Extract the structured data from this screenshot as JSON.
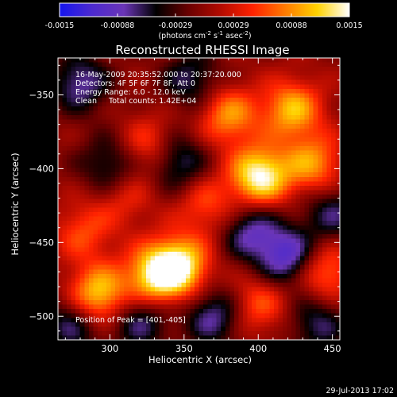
{
  "chart_data": {
    "type": "heatmap",
    "title": "Reconstructed RHESSI Image",
    "xlabel": "Heliocentric X (arcsec)",
    "ylabel": "Heliocentric Y (arcsec)",
    "xlim": [
      265,
      455
    ],
    "ylim": [
      -516,
      -325
    ],
    "xticks": [
      300,
      350,
      400,
      450
    ],
    "yticks": [
      -350,
      -400,
      -450,
      -500
    ],
    "colorbar": {
      "min": -0.0015,
      "max": 0.0015,
      "ticks": [
        "-0.0015",
        "-0.00088",
        "-0.00029",
        "0.00029",
        "0.00088",
        "0.0015"
      ],
      "label_parts": [
        "(photons cm",
        "-2",
        " s",
        "-1",
        " asec",
        "-2",
        ")"
      ]
    },
    "colormap": [
      "#1515ee",
      "#4c2ad0",
      "#6a35b7",
      "#000000",
      "#6a0000",
      "#b30b00",
      "#ff2200",
      "#ff7a00",
      "#ffd200",
      "#ffffff"
    ],
    "annotations": [
      "16-May-2009 20:35:52.000 to 20:37:20.000",
      "Detectors: 4F 5F 6F 7F 8F, Att 0",
      "Energy Range: 6.0 - 12.0 keV",
      "Clean     Total counts: 1.42E+04"
    ],
    "peak_label": "Position of Peak = [401,-405]",
    "sources": [
      {
        "x": 401,
        "y": -405,
        "v": 1.0
      },
      {
        "x": 347,
        "y": -466,
        "v": 0.92
      },
      {
        "x": 330,
        "y": -473,
        "v": 0.8
      },
      {
        "x": 292,
        "y": -486,
        "v": 0.85
      },
      {
        "x": 423,
        "y": -360,
        "v": 0.72
      },
      {
        "x": 437,
        "y": -397,
        "v": 0.62
      },
      {
        "x": 380,
        "y": -364,
        "v": 0.62
      },
      {
        "x": 445,
        "y": -470,
        "v": 0.55
      },
      {
        "x": 400,
        "y": -492,
        "v": 0.45
      },
      {
        "x": 327,
        "y": -385,
        "v": 0.45
      },
      {
        "x": 282,
        "y": -443,
        "v": 0.4
      },
      {
        "x": 365,
        "y": -425,
        "v": 0.4
      },
      {
        "x": 310,
        "y": -420,
        "v": 0.3
      },
      {
        "x": 345,
        "y": -395,
        "v": -0.55
      },
      {
        "x": 300,
        "y": -398,
        "v": -0.45
      },
      {
        "x": 420,
        "y": -460,
        "v": -0.7
      },
      {
        "x": 395,
        "y": -443,
        "v": -0.55
      },
      {
        "x": 280,
        "y": -342,
        "v": -0.55
      },
      {
        "x": 320,
        "y": -503,
        "v": -0.5
      },
      {
        "x": 370,
        "y": -500,
        "v": -0.55
      },
      {
        "x": 355,
        "y": -340,
        "v": -0.45
      },
      {
        "x": 275,
        "y": -505,
        "v": -0.5
      },
      {
        "x": 450,
        "y": -430,
        "v": -0.45
      },
      {
        "x": 440,
        "y": -505,
        "v": -0.45
      }
    ]
  },
  "footer": {
    "timestamp": "29-Jul-2013 17:02"
  }
}
